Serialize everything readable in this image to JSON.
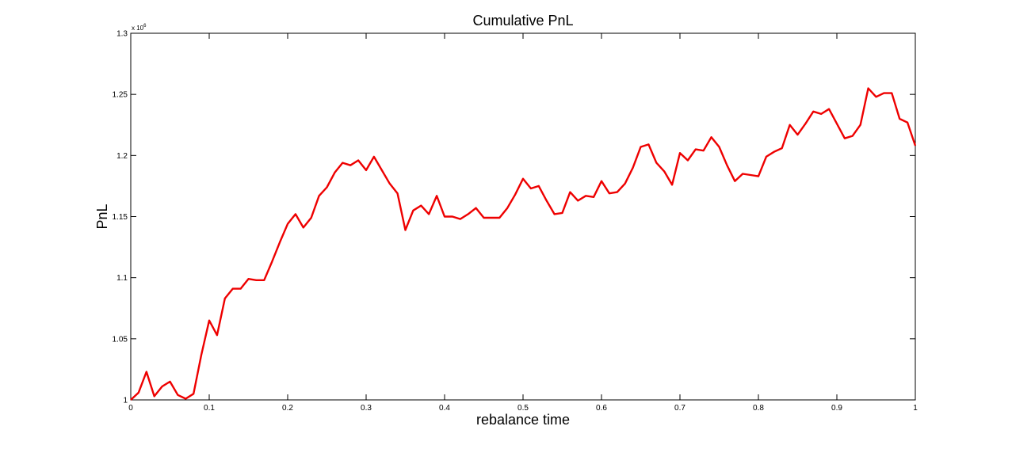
{
  "chart_data": {
    "type": "line",
    "title": "Cumulative PnL",
    "xlabel": "rebalance time",
    "ylabel": "PnL",
    "y_exponent_label": "x 10",
    "y_exponent_power": "6",
    "xlim": [
      0,
      1
    ],
    "ylim": [
      1.0,
      1.3
    ],
    "xticks": [
      0,
      0.1,
      0.2,
      0.3,
      0.4,
      0.5,
      0.6,
      0.7,
      0.8,
      0.9,
      1
    ],
    "xtick_labels": [
      "0",
      "0.1",
      "0.2",
      "0.3",
      "0.4",
      "0.5",
      "0.6",
      "0.7",
      "0.8",
      "0.9",
      "1"
    ],
    "yticks": [
      1.0,
      1.05,
      1.1,
      1.15,
      1.2,
      1.25,
      1.3
    ],
    "ytick_labels": [
      "1",
      "1.05",
      "1.1",
      "1.15",
      "1.2",
      "1.25",
      "1.3"
    ],
    "grid": false,
    "line_color": "#ee0000",
    "series": [
      {
        "x": [
          0,
          0.01,
          0.02,
          0.03,
          0.04,
          0.05,
          0.06,
          0.07,
          0.08,
          0.09,
          0.1,
          0.11,
          0.12,
          0.13,
          0.14,
          0.15,
          0.16,
          0.17,
          0.18,
          0.19,
          0.2,
          0.21,
          0.22,
          0.23,
          0.24,
          0.25,
          0.26,
          0.27,
          0.28,
          0.29,
          0.3,
          0.31,
          0.32,
          0.33,
          0.34,
          0.35,
          0.36,
          0.37,
          0.38,
          0.39,
          0.4,
          0.41,
          0.42,
          0.43,
          0.44,
          0.45,
          0.46,
          0.47,
          0.48,
          0.49,
          0.5,
          0.51,
          0.52,
          0.53,
          0.54,
          0.55,
          0.56,
          0.57,
          0.58,
          0.59,
          0.6,
          0.61,
          0.62,
          0.63,
          0.64,
          0.65,
          0.66,
          0.67,
          0.68,
          0.69,
          0.7,
          0.71,
          0.72,
          0.73,
          0.74,
          0.75,
          0.76,
          0.77,
          0.78,
          0.79,
          0.8,
          0.81,
          0.82,
          0.83,
          0.84,
          0.85,
          0.86,
          0.87,
          0.88,
          0.89,
          0.9,
          0.91,
          0.92,
          0.93,
          0.94,
          0.95,
          0.96,
          0.97,
          0.98,
          0.99,
          1.0
        ],
        "values": [
          1.0,
          1.006,
          1.023,
          1.003,
          1.011,
          1.015,
          1.004,
          1.001,
          1.005,
          1.037,
          1.065,
          1.053,
          1.083,
          1.091,
          1.091,
          1.099,
          1.098,
          1.098,
          1.113,
          1.129,
          1.144,
          1.152,
          1.141,
          1.149,
          1.167,
          1.174,
          1.186,
          1.194,
          1.192,
          1.196,
          1.188,
          1.199,
          1.188,
          1.177,
          1.169,
          1.139,
          1.155,
          1.159,
          1.152,
          1.167,
          1.15,
          1.15,
          1.148,
          1.152,
          1.157,
          1.149,
          1.149,
          1.149,
          1.157,
          1.168,
          1.181,
          1.173,
          1.175,
          1.163,
          1.152,
          1.153,
          1.17,
          1.163,
          1.167,
          1.166,
          1.179,
          1.169,
          1.17,
          1.177,
          1.19,
          1.207,
          1.209,
          1.194,
          1.187,
          1.176,
          1.202,
          1.196,
          1.205,
          1.204,
          1.215,
          1.207,
          1.192,
          1.179,
          1.185,
          1.184,
          1.183,
          1.199,
          1.203,
          1.206,
          1.225,
          1.217,
          1.226,
          1.236,
          1.234,
          1.238,
          1.226,
          1.214,
          1.216,
          1.225,
          1.255,
          1.248,
          1.251,
          1.251,
          1.23,
          1.227,
          1.208
        ]
      }
    ]
  }
}
